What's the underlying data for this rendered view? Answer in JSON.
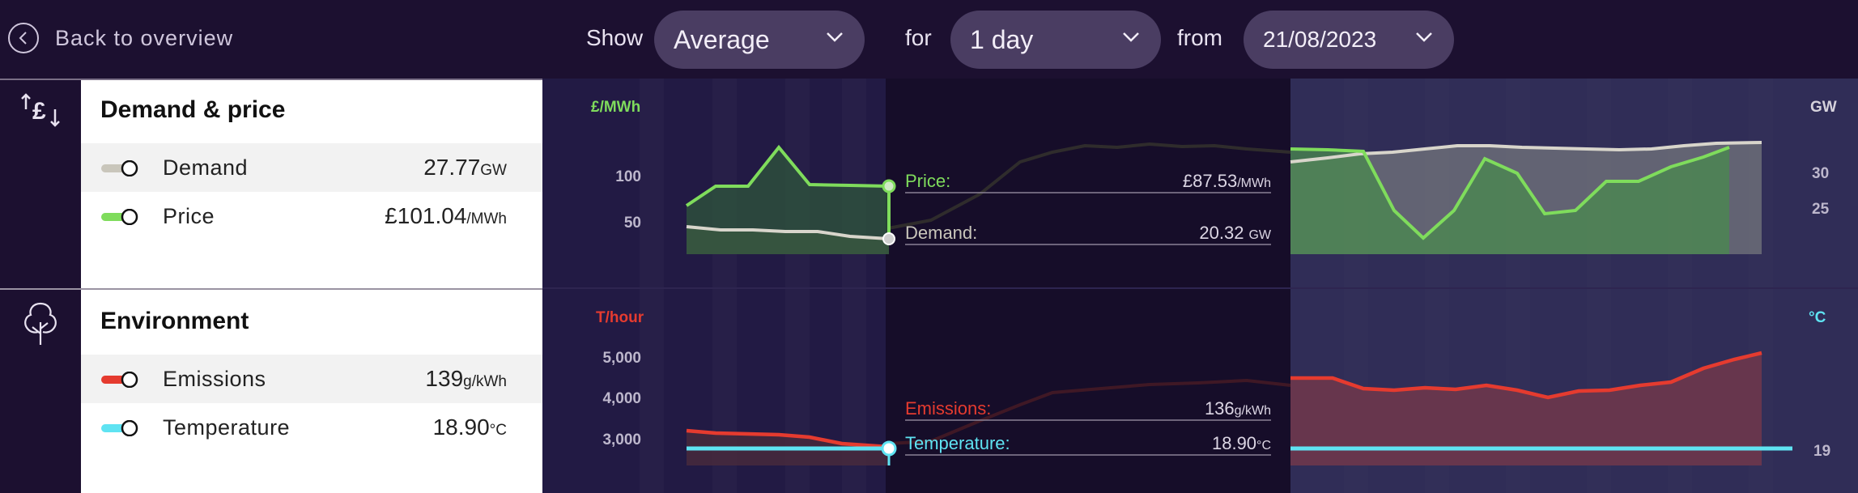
{
  "topbar": {
    "back_label": "Back to overview",
    "show_label": "Show",
    "show_value": "Average",
    "for_label": "for",
    "for_value": "1 day",
    "from_label": "from",
    "from_value": "21/08/2023"
  },
  "demand_price": {
    "title": "Demand & price",
    "rows": [
      {
        "name": "Demand",
        "value": "27.77",
        "unit": "GW",
        "color": "#c9c6bb"
      },
      {
        "name": "Price",
        "value": "£101.04",
        "unit": "/MWh",
        "color": "#7fdc5c"
      }
    ],
    "left_axis_unit": "£/MWh",
    "left_ticks": [
      "100",
      "50"
    ],
    "right_axis_unit": "GW",
    "right_ticks": [
      "30",
      "25"
    ],
    "tooltip": {
      "price_label": "Price:",
      "price_value": "£87.53",
      "price_unit": "/MWh",
      "demand_label": "Demand:",
      "demand_value": "20.32",
      "demand_unit": "GW"
    }
  },
  "environment": {
    "title": "Environment",
    "rows": [
      {
        "name": "Emissions",
        "value": "139",
        "unit": "g/kWh",
        "color": "#e53b2f"
      },
      {
        "name": "Temperature",
        "value": "18.90",
        "unit": "°C",
        "color": "#5fe3f2"
      }
    ],
    "left_axis_unit": "T/hour",
    "left_ticks": [
      "5,000",
      "4,000",
      "3,000"
    ],
    "right_axis_unit": "°C",
    "right_ticks": [
      "19"
    ],
    "tooltip": {
      "emissions_label": "Emissions:",
      "emissions_value": "136",
      "emissions_unit": "g/kWh",
      "temperature_label": "Temperature:",
      "temperature_value": "18.90",
      "temperature_unit": "°C"
    }
  },
  "colors": {
    "price": "#7fdc5c",
    "demand": "#d8d5cb",
    "emissions": "#e53b2f",
    "temperature": "#5fe3f2",
    "background": "#1c1030",
    "chart_bg": "#221a44"
  }
}
